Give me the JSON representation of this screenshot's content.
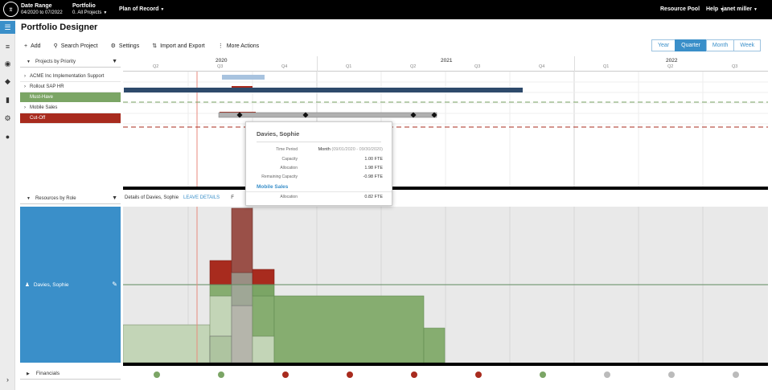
{
  "topbar": {
    "date_range_label": "Date Range",
    "date_range_value": "04/2020 to 07/2022",
    "portfolio_label": "Portfolio",
    "portfolio_value": "0. All Projects",
    "plan_label": "Plan of Record",
    "resource_pool_label": "Resource Pool",
    "help_label": "Help",
    "user_label": "janet miller"
  },
  "page": {
    "title": "Portfolio Designer"
  },
  "toolbar": {
    "add_label": "Add",
    "search_label": "Search Project",
    "settings_label": "Settings",
    "import_label": "Import and Export",
    "more_label": "More Actions"
  },
  "zoom": {
    "options": [
      "Year",
      "Quarter",
      "Month",
      "Week"
    ],
    "selected": "Quarter"
  },
  "projects_panel": {
    "header": "Projects by Priority",
    "rows": [
      {
        "label": "ACME Inc Implementation Support",
        "kind": "project"
      },
      {
        "label": "Rollout SAP HR",
        "kind": "project"
      },
      {
        "label": "Must-Have",
        "kind": "group-green"
      },
      {
        "label": "Mobile Sales",
        "kind": "project"
      },
      {
        "label": "Cut-Off",
        "kind": "group-red"
      }
    ]
  },
  "timeline": {
    "years": [
      "2020",
      "2021",
      "2022"
    ],
    "quarters": [
      "Q2",
      "Q3",
      "Q4",
      "Q1",
      "Q2",
      "Q3",
      "Q4",
      "Q1",
      "Q2",
      "Q3"
    ]
  },
  "resources_panel": {
    "header": "Resources by Role",
    "details_text": "Details of Davies, Sophie",
    "leave_link": "LEAVE DETAILS",
    "extra_text": "F",
    "person_name": "Davies, Sophie"
  },
  "financials": {
    "header": "Financials",
    "dot_status": [
      "good",
      "good",
      "bad",
      "bad",
      "bad",
      "bad",
      "good",
      "none",
      "none",
      "none"
    ],
    "status_colors": {
      "good": "#7ba565",
      "bad": "#a82b1e",
      "none": "#bbbbbb"
    }
  },
  "tooltip": {
    "title": "Davies, Sophie",
    "time_period_label": "Time Period",
    "time_period_unit": "Month",
    "time_period_range": "(09/01/2020 - 09/30/2020)",
    "capacity_label": "Capacity",
    "capacity_value": "1.00 FTE",
    "allocation_label": "Allocation",
    "allocation_value": "1.98 FTE",
    "remaining_label": "Remaining Capacity",
    "remaining_value": "-0.98 FTE",
    "project_name": "Mobile Sales",
    "project_allocation_label": "Allocation",
    "project_allocation_value": "0.82 FTE"
  },
  "colors": {
    "accent": "#3a8fc9",
    "must_have": "#7ba565",
    "cut_off": "#a82b1e",
    "dark_bar": "#2e4a6b"
  }
}
